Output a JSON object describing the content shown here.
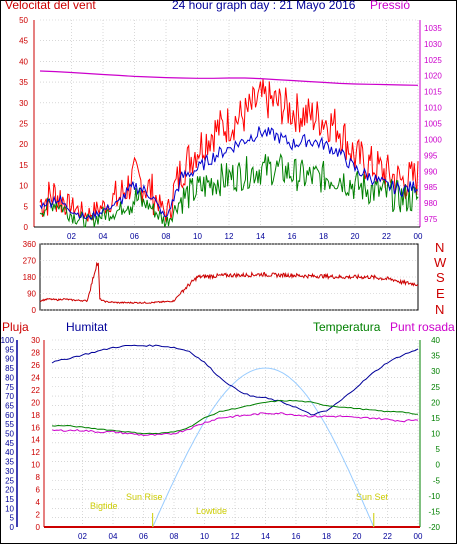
{
  "header": {
    "title": "24 hour graph day : 21 Mayo 2016",
    "left_label": "Velocitat del vent",
    "right_label": "Pressió"
  },
  "labels": {
    "compass": [
      "N",
      "W",
      "S",
      "E",
      "N"
    ],
    "pluja": "Pluja",
    "humitat": "Humitat",
    "temperatura": "Temperatura",
    "punt_rosada": "Punt rosada",
    "sunrise": "Sun Rise",
    "sunset": "Sun Set",
    "bigtide": "Bigtide",
    "lowtide": "Lowtide"
  },
  "colors": {
    "wind_gust": "#ff0000",
    "wind_avg": "#0000cc",
    "wind_low": "#008000",
    "pressure": "#cc00cc",
    "direction": "#cc0000",
    "humidity": "#000099",
    "temperature": "#008000",
    "dewpoint": "#cc00cc",
    "solar": "#99ccff",
    "axis_red": "#cc0000",
    "axis_blue": "#000099",
    "grid": "#c0c0c0"
  },
  "chart_data": [
    {
      "type": "line",
      "name": "wind-pressure",
      "x_ticks": [
        "02",
        "04",
        "06",
        "08",
        "10",
        "12",
        "14",
        "16",
        "18",
        "20",
        "22",
        "00"
      ],
      "ylim_left": [
        0,
        50
      ],
      "left_ticks": [
        0,
        5,
        10,
        15,
        20,
        25,
        30,
        35,
        40,
        45,
        50
      ],
      "ylim_right": [
        972.5,
        1037.5
      ],
      "right_ticks": [
        975,
        980,
        985,
        990,
        995,
        1000,
        1005,
        1010,
        1015,
        1020,
        1025,
        1030,
        1035
      ],
      "x_hours": [
        0,
        1,
        2,
        3,
        4,
        5,
        6,
        7,
        8,
        9,
        10,
        11,
        12,
        13,
        14,
        15,
        16,
        17,
        18,
        19,
        20,
        21,
        22,
        23,
        24
      ],
      "gust": [
        6,
        8,
        5,
        3,
        5,
        7,
        12,
        9,
        3,
        14,
        19,
        23,
        25,
        27,
        31,
        30,
        28,
        27,
        26,
        24,
        17,
        15,
        13,
        11,
        12
      ],
      "average": [
        5,
        7,
        4,
        2,
        4,
        6,
        10,
        8,
        2,
        12,
        14,
        17,
        19,
        21,
        23,
        22,
        20,
        21,
        20,
        18,
        14,
        12,
        10,
        9,
        10
      ],
      "low": [
        4,
        6,
        3,
        1,
        3,
        4,
        7,
        5,
        1,
        7,
        9,
        11,
        12,
        13,
        14,
        14,
        13,
        12,
        12,
        12,
        10,
        9,
        8,
        7,
        7
      ],
      "pressure": [
        1021.5,
        1021.3,
        1021,
        1020.7,
        1020.4,
        1020.1,
        1019.8,
        1019.6,
        1019.4,
        1019.3,
        1019.2,
        1019.2,
        1019.3,
        1019.3,
        1019.1,
        1018.8,
        1018.5,
        1018.2,
        1017.9,
        1017.6,
        1017.4,
        1017.3,
        1017.2,
        1017.1,
        1017
      ]
    },
    {
      "type": "line",
      "name": "wind-direction",
      "ylim": [
        0,
        360
      ],
      "ticks": [
        0,
        90,
        180,
        270,
        360
      ],
      "x_hours": [
        0,
        0.5,
        1.1,
        1.5,
        2,
        3,
        3.3,
        3.6,
        3.7,
        3.8,
        4.0,
        4.2,
        5,
        6,
        7,
        8,
        8.5,
        9,
        10,
        11,
        12,
        13,
        14,
        15,
        16,
        17,
        18,
        19,
        20,
        21,
        22,
        22.5,
        23,
        24
      ],
      "values": [
        50,
        60,
        55,
        60,
        55,
        50,
        150,
        250,
        250,
        60,
        50,
        45,
        40,
        40,
        40,
        45,
        50,
        100,
        180,
        185,
        190,
        190,
        195,
        190,
        190,
        185,
        185,
        180,
        180,
        180,
        170,
        165,
        150,
        140
      ]
    },
    {
      "type": "line",
      "name": "humidity-temperature",
      "x_ticks": [
        "02",
        "04",
        "06",
        "08",
        "10",
        "12",
        "14",
        "16",
        "18",
        "20",
        "22",
        "00"
      ],
      "pluja_ticks": [
        0,
        2,
        4,
        6,
        8,
        10,
        12,
        14,
        16,
        18,
        20,
        22,
        24,
        26,
        28,
        30
      ],
      "humidity_ticks": [
        0,
        5,
        10,
        15,
        20,
        25,
        30,
        35,
        40,
        45,
        50,
        55,
        60,
        65,
        70,
        75,
        80,
        85,
        90,
        95,
        100
      ],
      "temperature_ticks": [
        -20,
        -15,
        -10,
        -5,
        0,
        5,
        10,
        15,
        20,
        25,
        30,
        35,
        40
      ],
      "ylim_humidity": [
        0,
        100
      ],
      "ylim_temperature": [
        -20,
        40
      ],
      "x_hours": [
        0,
        1,
        2,
        3,
        4,
        5,
        6,
        7,
        8,
        9,
        10,
        11,
        12,
        13,
        14,
        15,
        16,
        17,
        18,
        19,
        20,
        21,
        22,
        23,
        24
      ],
      "humidity": [
        88,
        90,
        92,
        94,
        96,
        97,
        97,
        97,
        96,
        94,
        88,
        80,
        74,
        70,
        69,
        67,
        64,
        60,
        62,
        68,
        75,
        82,
        88,
        92,
        95
      ],
      "temperature": [
        12.5,
        12.5,
        12,
        11.5,
        11,
        10.5,
        10,
        10,
        10.5,
        12,
        15,
        17,
        18,
        19,
        20,
        20.5,
        20.5,
        20,
        19,
        18.5,
        18,
        17.5,
        17,
        17,
        16
      ],
      "dewpoint": [
        11,
        11,
        11,
        10.5,
        10.5,
        10,
        9.5,
        9.5,
        10,
        11.5,
        13.5,
        15,
        15.5,
        16,
        16.5,
        16.5,
        16,
        15.5,
        15.5,
        15.5,
        15,
        15,
        14.5,
        14,
        14.5
      ],
      "solar_peak_hour": 14,
      "sunrise_hour": 6.6,
      "sunset_hour": 21.1,
      "solar_peak_temperature_units": 31
    }
  ]
}
